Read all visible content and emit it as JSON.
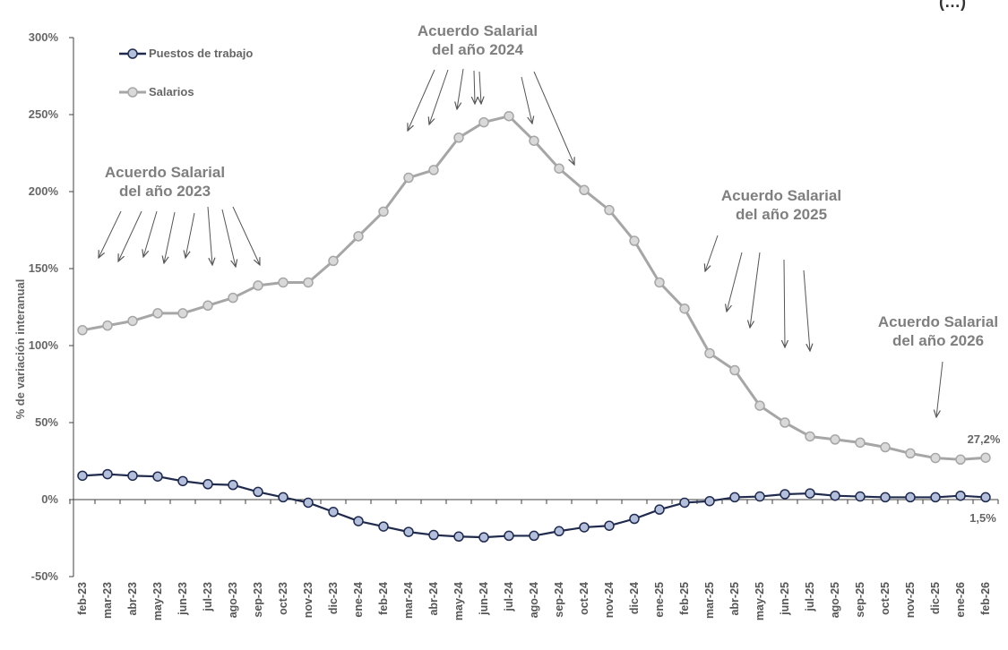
{
  "chart_data": {
    "type": "line",
    "title_visible_part": "(…)",
    "ylabel": "% de variación interanual",
    "ylim": [
      -50,
      300
    ],
    "yticks": [
      -50,
      0,
      50,
      100,
      150,
      200,
      250,
      300
    ],
    "ytick_labels": [
      "-50%",
      "0%",
      "50%",
      "100%",
      "150%",
      "200%",
      "250%",
      "300%"
    ],
    "grid": false,
    "legend_placement": "top-left",
    "categories": [
      "feb-23",
      "mar-23",
      "abr-23",
      "may-23",
      "jun-23",
      "jul-23",
      "ago-23",
      "sep-23",
      "oct-23",
      "nov-23",
      "dic-23",
      "ene-24",
      "feb-24",
      "mar-24",
      "abr-24",
      "may-24",
      "jun-24",
      "jul-24",
      "ago-24",
      "sep-24",
      "oct-24",
      "nov-24",
      "dic-24",
      "ene-25",
      "feb-25",
      "mar-25",
      "abr-25",
      "may-25",
      "jun-25",
      "jul-25",
      "ago-25",
      "sep-25",
      "oct-25",
      "nov-25",
      "dic-25",
      "ene-26",
      "feb-26"
    ],
    "series": [
      {
        "name": "Puestos de trabajo",
        "color": "#1f2a4d",
        "marker_fill": "#b4bfdc",
        "values": [
          15.5,
          16.5,
          15.5,
          15,
          12,
          10,
          9.5,
          5,
          1.5,
          -2,
          -8,
          -14,
          -17.5,
          -21,
          -23,
          -24,
          -24.5,
          -23.5,
          -23.5,
          -20.5,
          -18,
          -17,
          -12.5,
          -6.5,
          -2,
          -1,
          1.5,
          2,
          3.5,
          4,
          2.5,
          2,
          1.5,
          1.5,
          1.5,
          2.5,
          1.5
        ],
        "end_label": "1,5%"
      },
      {
        "name": "Salarios",
        "color": "#a6a6a6",
        "marker_fill": "#d9d9d9",
        "values": [
          110,
          113,
          116,
          121,
          121,
          126,
          131,
          139,
          141,
          141,
          155,
          171,
          187,
          209,
          214,
          235,
          245,
          249,
          233,
          215,
          201,
          188,
          168,
          141,
          124,
          95,
          84,
          61,
          50,
          41,
          39,
          37,
          34,
          30,
          27,
          26,
          27.2
        ],
        "end_label": "27,2%"
      }
    ],
    "annotations": [
      {
        "text_lines": [
          "Acuerdo Salarial",
          "del año 2023"
        ]
      },
      {
        "text_lines": [
          "Acuerdo Salarial",
          "del año 2024"
        ]
      },
      {
        "text_lines": [
          "Acuerdo Salarial",
          "del año 2025"
        ]
      },
      {
        "text_lines": [
          "Acuerdo Salarial",
          "del año 2026"
        ]
      }
    ]
  }
}
